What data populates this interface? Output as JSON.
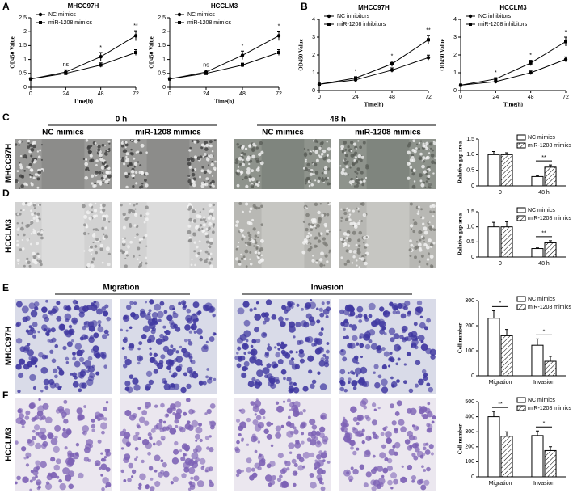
{
  "figure_labels": {
    "letters": [
      "A",
      "B",
      "C",
      "D",
      "E",
      "F"
    ],
    "rows": [
      "MHCC97H",
      "HCCLM3",
      "MHCC97H",
      "HCCLM3"
    ],
    "wound_times": [
      "0 h",
      "48 h"
    ],
    "wound_columns": [
      "NC mimics",
      "miR-1208 mimics",
      "NC mimics",
      "miR-1208 mimics"
    ],
    "transwell_groups": [
      "Migration",
      "Invasion"
    ]
  },
  "chart_data": [
    {
      "type": "line",
      "title": "MHCC97H",
      "x_label": "Time(h)",
      "y_label": "OD450 Value",
      "x": [
        0,
        24,
        48,
        72
      ],
      "xlim": [
        0,
        72
      ],
      "xticks": [
        0,
        24,
        48,
        72
      ],
      "ylim": [
        0,
        2.5
      ],
      "yticks": [
        0,
        0.5,
        1,
        1.5,
        2,
        2.5
      ],
      "legend": "upper left",
      "series": [
        {
          "name": "NC mimics",
          "color": "#000000",
          "marker": "circle",
          "values": [
            0.3,
            0.55,
            1.1,
            1.85
          ],
          "errors": [
            0.03,
            0.08,
            0.15,
            0.18
          ]
        },
        {
          "name": "miR-1208 mimics",
          "color": "#000000",
          "marker": "square",
          "values": [
            0.3,
            0.5,
            0.8,
            1.25
          ],
          "errors": [
            0.03,
            0.05,
            0.08,
            0.1
          ]
        }
      ],
      "annotations": [
        {
          "x": 24,
          "text": "ns"
        },
        {
          "x": 48,
          "text": "*"
        },
        {
          "x": 72,
          "text": "**"
        }
      ]
    },
    {
      "type": "line",
      "title": "HCCLM3",
      "x_label": "Time(h)",
      "y_label": "OD450 Value",
      "x": [
        0,
        24,
        48,
        72
      ],
      "xlim": [
        0,
        72
      ],
      "xticks": [
        0,
        24,
        48,
        72
      ],
      "ylim": [
        0,
        2.5
      ],
      "yticks": [
        0,
        0.5,
        1,
        1.5,
        2,
        2.5
      ],
      "legend": "upper left",
      "series": [
        {
          "name": "NC mimics",
          "color": "#000000",
          "marker": "circle",
          "values": [
            0.3,
            0.55,
            1.15,
            1.85
          ],
          "errors": [
            0.03,
            0.07,
            0.15,
            0.17
          ]
        },
        {
          "name": "miR-1208 mimics",
          "color": "#000000",
          "marker": "square",
          "values": [
            0.3,
            0.5,
            0.8,
            1.25
          ],
          "errors": [
            0.03,
            0.05,
            0.07,
            0.1
          ]
        }
      ],
      "annotations": [
        {
          "x": 24,
          "text": "ns"
        },
        {
          "x": 48,
          "text": "*"
        },
        {
          "x": 72,
          "text": "*"
        }
      ]
    },
    {
      "type": "line",
      "title": "MHCC97H",
      "x_label": "Time(h)",
      "y_label": "OD450 Value",
      "x": [
        0,
        24,
        48,
        72
      ],
      "xlim": [
        0,
        72
      ],
      "xticks": [
        0,
        24,
        48,
        72
      ],
      "ylim": [
        0,
        4
      ],
      "yticks": [
        0,
        1,
        2,
        3,
        4
      ],
      "legend": "upper left",
      "series": [
        {
          "name": "NC inhibitors",
          "color": "#000000",
          "marker": "circle",
          "values": [
            0.35,
            0.6,
            1.15,
            1.85
          ],
          "errors": [
            0.04,
            0.07,
            0.12,
            0.14
          ]
        },
        {
          "name": "miR-1208 inhibitors",
          "color": "#000000",
          "marker": "square",
          "values": [
            0.35,
            0.7,
            1.5,
            2.85
          ],
          "errors": [
            0.04,
            0.08,
            0.15,
            0.25
          ]
        }
      ],
      "annotations": [
        {
          "x": 24,
          "text": "*"
        },
        {
          "x": 48,
          "text": "*"
        },
        {
          "x": 72,
          "text": "**"
        }
      ]
    },
    {
      "type": "line",
      "title": "HCCLM3",
      "x_label": "Time(h)",
      "y_label": "OD450 Value",
      "x": [
        0,
        24,
        48,
        72
      ],
      "xlim": [
        0,
        72
      ],
      "xticks": [
        0,
        24,
        48,
        72
      ],
      "ylim": [
        0,
        4
      ],
      "yticks": [
        0,
        1,
        2,
        3,
        4
      ],
      "legend": "upper left",
      "series": [
        {
          "name": "NC inhibitors",
          "color": "#000000",
          "marker": "circle",
          "values": [
            0.3,
            0.5,
            1.0,
            1.75
          ],
          "errors": [
            0.03,
            0.06,
            0.1,
            0.14
          ]
        },
        {
          "name": "miR-1208 inhibitors",
          "color": "#000000",
          "marker": "square",
          "values": [
            0.3,
            0.65,
            1.55,
            2.75
          ],
          "errors": [
            0.03,
            0.07,
            0.15,
            0.25
          ]
        }
      ],
      "annotations": [
        {
          "x": 24,
          "text": "*"
        },
        {
          "x": 48,
          "text": "*"
        },
        {
          "x": 72,
          "text": "*"
        }
      ]
    },
    {
      "type": "bar",
      "y_label": "Relative gap area",
      "categories": [
        "0",
        "48 h"
      ],
      "ylim": [
        0,
        1.5
      ],
      "yticks": [
        0,
        0.5,
        {
          "value": 1,
          "label": "1.0"
        },
        1.5
      ],
      "legend": "upper right",
      "series": [
        {
          "name": "NC mimics",
          "color": "#ffffff",
          "hatch": false,
          "values": [
            1.0,
            0.3
          ],
          "errors": [
            0.1,
            0.03
          ]
        },
        {
          "name": "miR-1208 mimics",
          "color": "#ffffff",
          "hatch": true,
          "values": [
            1.0,
            0.6
          ],
          "errors": [
            0.06,
            0.07
          ]
        }
      ],
      "annotations": [
        {
          "category": "48 h",
          "text": "**"
        }
      ]
    },
    {
      "type": "bar",
      "y_label": "Relative gap area",
      "categories": [
        "0",
        "48 h"
      ],
      "ylim": [
        0,
        1.5
      ],
      "yticks": [
        0,
        0.5,
        {
          "value": 1,
          "label": "1.0"
        },
        1.5
      ],
      "legend": "upper right",
      "series": [
        {
          "name": "NC mimics",
          "color": "#ffffff",
          "hatch": false,
          "values": [
            1.0,
            0.28
          ],
          "errors": [
            0.15,
            0.02
          ]
        },
        {
          "name": "miR-1208 mimics",
          "color": "#ffffff",
          "hatch": true,
          "values": [
            1.0,
            0.47
          ],
          "errors": [
            0.17,
            0.07
          ]
        }
      ],
      "annotations": [
        {
          "category": "48 h",
          "text": "**"
        }
      ]
    },
    {
      "type": "bar",
      "y_label": "Cell number",
      "categories": [
        "Migration",
        "Invasion"
      ],
      "ylim": [
        0,
        300
      ],
      "yticks": [
        0,
        100,
        200,
        300
      ],
      "legend": "upper right",
      "series": [
        {
          "name": "NC mimics",
          "color": "#ffffff",
          "hatch": false,
          "values": [
            230,
            122
          ],
          "errors": [
            30,
            25
          ]
        },
        {
          "name": "miR-1208 mimics",
          "color": "#ffffff",
          "hatch": true,
          "values": [
            160,
            58
          ],
          "errors": [
            25,
            20
          ]
        }
      ],
      "annotations": [
        {
          "category": "Migration",
          "text": "*"
        },
        {
          "category": "Invasion",
          "text": "*"
        }
      ]
    },
    {
      "type": "bar",
      "y_label": "Cell number",
      "categories": [
        "Migration",
        "Invasion"
      ],
      "ylim": [
        0,
        500
      ],
      "yticks": [
        0,
        100,
        200,
        300,
        400,
        500
      ],
      "legend": "upper right",
      "series": [
        {
          "name": "NC mimics",
          "color": "#ffffff",
          "hatch": false,
          "values": [
            400,
            275
          ],
          "errors": [
            35,
            30
          ]
        },
        {
          "name": "miR-1208 mimics",
          "color": "#ffffff",
          "hatch": true,
          "values": [
            270,
            175
          ],
          "errors": [
            30,
            25
          ]
        }
      ],
      "annotations": [
        {
          "category": "Migration",
          "text": "**"
        },
        {
          "category": "Invasion",
          "text": "*"
        }
      ]
    }
  ]
}
